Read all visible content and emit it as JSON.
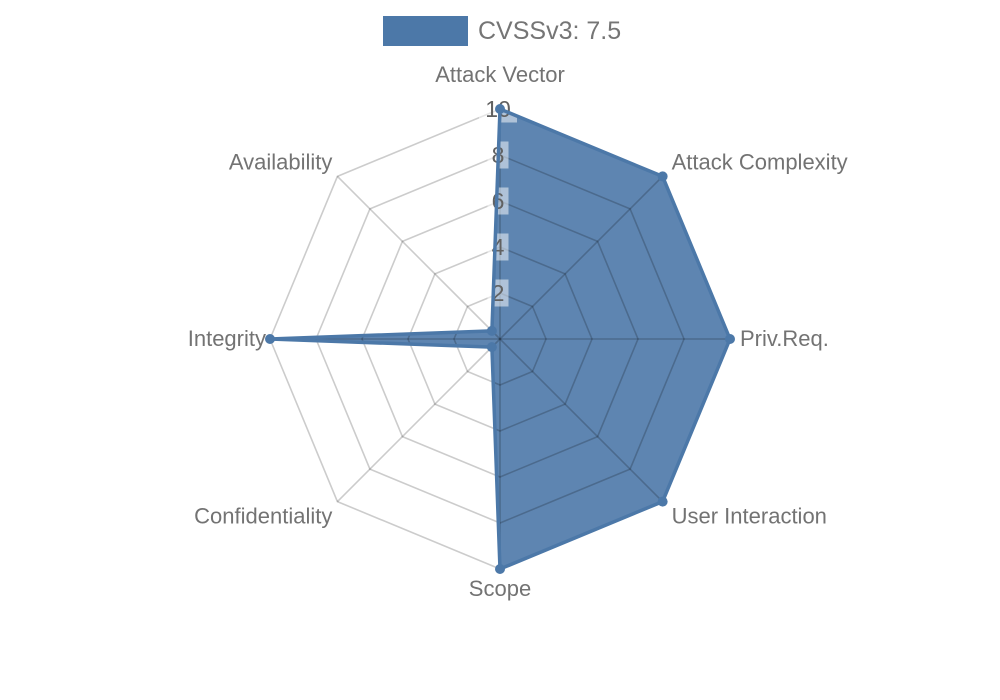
{
  "legend": {
    "label": "CVSSv3: 7.5",
    "swatch_color": "#4c78a8"
  },
  "chart_data": {
    "type": "radar",
    "title": "CVSSv3: 7.5",
    "categories": [
      "Attack Vector",
      "Attack Complexity",
      "Priv.Req.",
      "User Interaction",
      "Scope",
      "Confidentiality",
      "Integrity",
      "Availability"
    ],
    "series": [
      {
        "name": "CVSSv3: 7.5",
        "values": [
          10,
          10,
          10,
          10,
          10,
          0.5,
          10,
          0.5
        ]
      }
    ],
    "rmax": 10,
    "ticks": [
      2,
      4,
      6,
      8,
      10
    ],
    "rotation_deg": 90,
    "direction": "clockwise",
    "grid": "polygonal",
    "legend_position": "top-center",
    "colors": {
      "fill": "#4c78a8",
      "fill_opacity": 0.9,
      "line": "#4c78a8",
      "grid": "rgba(0,0,0,0.2)",
      "axis_label": "#737373",
      "tick_label": "#616161",
      "tick_bg": "rgba(255,255,255,0.5)"
    }
  }
}
